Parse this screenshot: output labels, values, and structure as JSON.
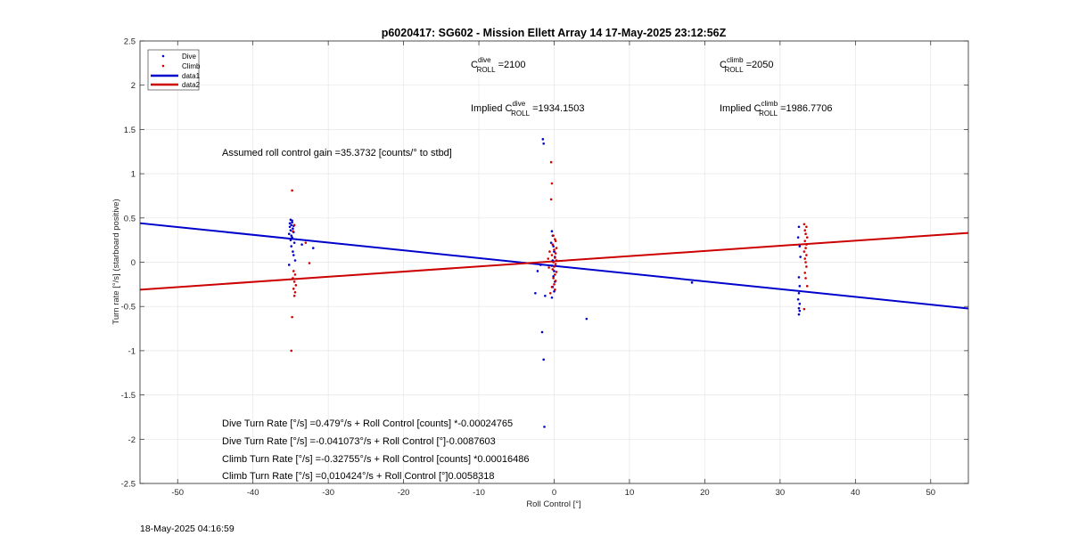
{
  "chart_data": {
    "type": "scatter",
    "title": "p6020417: SG602 - Mission Ellett Array 14 17-May-2025 23:12:56Z",
    "xlabel": "Roll Control [°]",
    "ylabel": "Turn rate [°/s] (starboard positive)",
    "xlim": [
      -55,
      55
    ],
    "ylim": [
      -2.5,
      2.5
    ],
    "xticks": [
      -50,
      -40,
      -30,
      -20,
      -10,
      0,
      10,
      20,
      30,
      40,
      50
    ],
    "yticks": [
      -2.5,
      -2,
      -1.5,
      -1,
      -0.5,
      0,
      0.5,
      1,
      1.5,
      2,
      2.5
    ],
    "grid": true,
    "legend_position": "top-left",
    "legend": [
      {
        "label": "Dive",
        "kind": "marker",
        "color": "#0000cc"
      },
      {
        "label": "Climb",
        "kind": "marker",
        "color": "#cc0000"
      },
      {
        "label": "data1",
        "kind": "line",
        "color": "#0000cc"
      },
      {
        "label": "data2",
        "kind": "line",
        "color": "#cc0000"
      }
    ],
    "series": [
      {
        "name": "Dive",
        "color": "#0000cc",
        "points": [
          [
            -35.0,
            0.48
          ],
          [
            -34.8,
            0.45
          ],
          [
            -34.9,
            0.42
          ],
          [
            -35.1,
            0.4
          ],
          [
            -34.7,
            0.38
          ],
          [
            -35.0,
            0.36
          ],
          [
            -34.6,
            0.34
          ],
          [
            -35.2,
            0.32
          ],
          [
            -34.9,
            0.3
          ],
          [
            -34.8,
            0.28
          ],
          [
            -35.0,
            0.25
          ],
          [
            -34.5,
            0.22
          ],
          [
            -34.9,
            0.18
          ],
          [
            -34.7,
            0.12
          ],
          [
            -34.6,
            0.08
          ],
          [
            -34.4,
            0.02
          ],
          [
            -35.2,
            -0.03
          ],
          [
            -34.8,
            0.47
          ],
          [
            -35.1,
            0.44
          ],
          [
            -34.6,
            0.41
          ],
          [
            -32.0,
            0.16
          ],
          [
            -33.5,
            0.2
          ],
          [
            -1.5,
            1.39
          ],
          [
            -1.4,
            1.34
          ],
          [
            -1.2,
            -0.38
          ],
          [
            -1.6,
            -0.79
          ],
          [
            -1.4,
            -1.1
          ],
          [
            -1.3,
            -1.86
          ],
          [
            -2.5,
            -0.35
          ],
          [
            -2.2,
            -0.1
          ],
          [
            -1.8,
            -0.03
          ],
          [
            -0.3,
            0.35
          ],
          [
            -0.2,
            0.3
          ],
          [
            -0.4,
            0.22
          ],
          [
            -0.1,
            0.18
          ],
          [
            0.0,
            0.12
          ],
          [
            0.1,
            0.06
          ],
          [
            -0.2,
            0.02
          ],
          [
            -0.3,
            -0.04
          ],
          [
            0.0,
            -0.1
          ],
          [
            -0.1,
            -0.16
          ],
          [
            0.1,
            -0.22
          ],
          [
            -0.2,
            -0.28
          ],
          [
            0.0,
            -0.33
          ],
          [
            -0.3,
            -0.4
          ],
          [
            4.3,
            -0.64
          ],
          [
            18.3,
            -0.23
          ],
          [
            32.5,
            0.4
          ],
          [
            32.4,
            0.28
          ],
          [
            32.6,
            0.18
          ],
          [
            32.7,
            0.06
          ],
          [
            32.5,
            -0.17
          ],
          [
            32.6,
            -0.27
          ],
          [
            32.5,
            -0.35
          ],
          [
            32.4,
            -0.42
          ],
          [
            32.6,
            -0.47
          ],
          [
            32.5,
            -0.52
          ],
          [
            32.6,
            -0.55
          ],
          [
            32.5,
            -0.59
          ]
        ]
      },
      {
        "name": "Climb",
        "color": "#cc0000",
        "points": [
          [
            -34.8,
            0.81
          ],
          [
            -34.5,
            0.42
          ],
          [
            -34.7,
            0.35
          ],
          [
            -34.6,
            -0.1
          ],
          [
            -34.4,
            -0.14
          ],
          [
            -34.7,
            -0.18
          ],
          [
            -34.5,
            -0.22
          ],
          [
            -34.3,
            -0.26
          ],
          [
            -34.6,
            -0.3
          ],
          [
            -34.4,
            -0.34
          ],
          [
            -34.5,
            -0.38
          ],
          [
            -34.8,
            -0.62
          ],
          [
            -34.9,
            -1.0
          ],
          [
            -32.5,
            -0.01
          ],
          [
            -33.0,
            0.22
          ],
          [
            -0.4,
            1.13
          ],
          [
            -0.3,
            0.89
          ],
          [
            -0.4,
            0.71
          ],
          [
            -0.1,
            0.3
          ],
          [
            0.1,
            0.26
          ],
          [
            0.2,
            0.24
          ],
          [
            -0.2,
            0.2
          ],
          [
            0.3,
            0.16
          ],
          [
            0.0,
            0.14
          ],
          [
            0.2,
            0.1
          ],
          [
            -0.3,
            0.08
          ],
          [
            0.1,
            0.05
          ],
          [
            0.3,
            0.02
          ],
          [
            -0.1,
            0.0
          ],
          [
            0.2,
            -0.02
          ],
          [
            0.0,
            -0.05
          ],
          [
            -0.2,
            -0.08
          ],
          [
            0.3,
            -0.11
          ],
          [
            0.1,
            -0.14
          ],
          [
            -0.1,
            -0.18
          ],
          [
            0.2,
            -0.21
          ],
          [
            0.0,
            -0.25
          ],
          [
            -0.3,
            -0.28
          ],
          [
            0.1,
            -0.31
          ],
          [
            -0.5,
            -0.35
          ],
          [
            -0.6,
            0.12
          ],
          [
            -0.7,
            -0.06
          ],
          [
            -0.8,
            0.04
          ],
          [
            33.2,
            0.43
          ],
          [
            33.5,
            0.4
          ],
          [
            33.3,
            0.36
          ],
          [
            33.4,
            0.32
          ],
          [
            33.6,
            0.28
          ],
          [
            33.3,
            0.24
          ],
          [
            33.5,
            0.2
          ],
          [
            33.4,
            0.16
          ],
          [
            33.2,
            0.12
          ],
          [
            33.5,
            0.08
          ],
          [
            33.3,
            0.04
          ],
          [
            33.4,
            0.0
          ],
          [
            33.5,
            -0.05
          ],
          [
            33.3,
            -0.12
          ],
          [
            33.4,
            -0.18
          ],
          [
            33.6,
            -0.27
          ],
          [
            33.2,
            -0.53
          ]
        ]
      }
    ],
    "fit_lines": [
      {
        "name": "data1",
        "color": "#0000cc",
        "intercept": -0.041073,
        "slope": -0.0087603
      },
      {
        "name": "data2",
        "color": "#cc0000",
        "intercept": 0.010424,
        "slope": 0.0058318
      }
    ],
    "annotations": {
      "c_dive_prefix": "C",
      "c_dive_sup": "dive",
      "c_dive_sub": "ROLL",
      "c_dive_value": " =2100",
      "c_climb_prefix": "C",
      "c_climb_sup": "climb",
      "c_climb_sub": "ROLL",
      "c_climb_value": " =2050",
      "implied_dive_prefix": "Implied C",
      "implied_dive_sup": "dive",
      "implied_dive_sub": "ROLL",
      "implied_dive_value": " =1934.1503",
      "implied_climb_prefix": "Implied C",
      "implied_climb_sup": "climb",
      "implied_climb_sub": "ROLL",
      "implied_climb_value": " =1986.7706",
      "gain": "Assumed roll control gain =35.3732 [counts/° to stbd]",
      "eq1": "Dive Turn Rate [°/s] =0.479°/s + Roll Control [counts] *-0.00024765",
      "eq2": "Dive Turn Rate [°/s] =-0.041073°/s + Roll Control [°]-0.0087603",
      "eq3": "Climb Turn Rate [°/s] =-0.32755°/s + Roll Control [counts] *0.00016486",
      "eq4": "Climb Turn Rate [°/s] =0.010424°/s + Roll Control [°]0.0058318"
    }
  },
  "footer_timestamp": "18-May-2025 04:16:59"
}
